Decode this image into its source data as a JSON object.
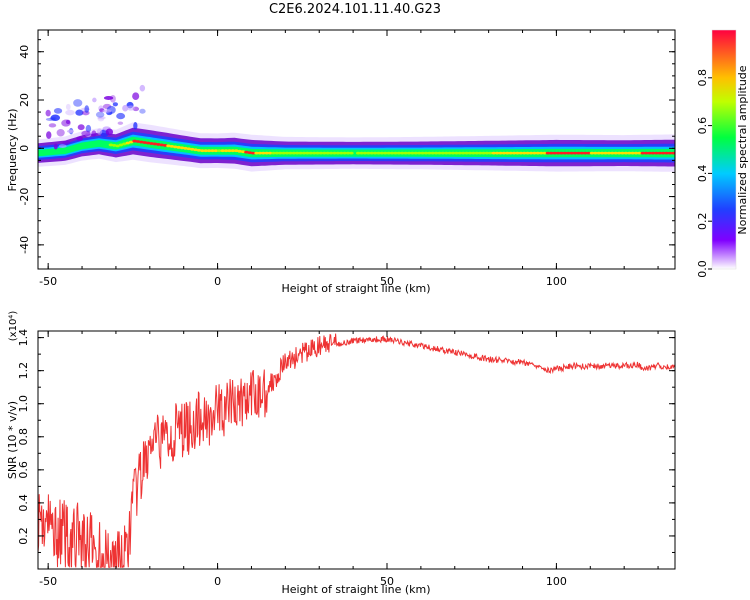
{
  "title": "C2E6.2024.101.11.40.G23",
  "colorbar": {
    "label": "Normalized spectral amplitude",
    "ticks": [
      "0.0",
      "0.2",
      "0.4",
      "0.6",
      "0.8"
    ],
    "tick_values": [
      0.0,
      0.2,
      0.4,
      0.6,
      0.8
    ],
    "range": [
      0,
      1
    ]
  },
  "chart_data": [
    {
      "type": "heatmap",
      "xlabel": "Height of straight line (km)",
      "ylabel": "Frequency (Hz)",
      "xlim": [
        -53,
        135
      ],
      "ylim": [
        -50,
        49
      ],
      "x_ticks": [
        -50,
        0,
        50,
        100
      ],
      "y_ticks": [
        -40,
        -20,
        0,
        20,
        40
      ],
      "ridge": {
        "x": [
          -53,
          -45,
          -40,
          -35,
          -30,
          -25,
          -20,
          -15,
          -10,
          -5,
          0,
          5,
          10,
          20,
          40,
          60,
          80,
          100,
          120,
          135
        ],
        "frequency": [
          -2,
          -1,
          1,
          2,
          1,
          3,
          2,
          1,
          0,
          -1,
          -1,
          -1,
          -2,
          -2,
          -2,
          -2,
          -2,
          -2,
          -2,
          -2
        ],
        "amplitude": [
          0.35,
          0.4,
          0.45,
          0.5,
          0.6,
          0.85,
          0.85,
          0.8,
          0.75,
          0.72,
          0.7,
          0.78,
          0.82,
          0.6,
          0.55,
          0.6,
          0.7,
          0.82,
          0.78,
          0.85
        ]
      },
      "color_scale": [
        "#ffffff",
        "#6a00c8",
        "#2040ff",
        "#00c8ff",
        "#00ff60",
        "#ffff00",
        "#ff2020"
      ]
    },
    {
      "type": "line",
      "xlabel": "Height of straight line (km)",
      "ylabel": "SNR (10 * v/v)",
      "y_multiplier": "(x10⁴)",
      "xlim": [
        -53,
        135
      ],
      "ylim": [
        0,
        14400
      ],
      "x_ticks": [
        -50,
        0,
        50,
        100
      ],
      "y_tick_values": [
        2000,
        4000,
        6000,
        8000,
        10000,
        12000,
        14000
      ],
      "y_tick_labels": [
        "0.2",
        "0.4",
        "0.6",
        "0.8",
        "1.0",
        "1.2",
        "1.4"
      ],
      "line_color": "#ee3333",
      "series": [
        {
          "x": [
            -53,
            -50,
            -45,
            -40,
            -35,
            -30,
            -27,
            -25,
            -22,
            -20,
            -18,
            -15,
            -10,
            -5,
            0,
            5,
            10,
            15,
            20,
            25,
            30,
            35,
            40,
            45,
            50,
            55,
            60,
            65,
            70,
            75,
            80,
            85,
            90,
            95,
            98,
            100,
            105,
            110,
            115,
            120,
            124,
            126,
            130,
            135
          ],
          "values": [
            3200,
            2600,
            2000,
            1800,
            800,
            400,
            500,
            4000,
            6000,
            7300,
            7500,
            8000,
            8500,
            9000,
            9500,
            10000,
            10300,
            11000,
            12500,
            13000,
            13500,
            13600,
            13800,
            13900,
            13900,
            13700,
            13500,
            13300,
            13100,
            12900,
            12700,
            12600,
            12500,
            12300,
            12000,
            12100,
            12300,
            12250,
            12300,
            12300,
            12350,
            12100,
            12300,
            12200
          ]
        }
      ]
    }
  ]
}
